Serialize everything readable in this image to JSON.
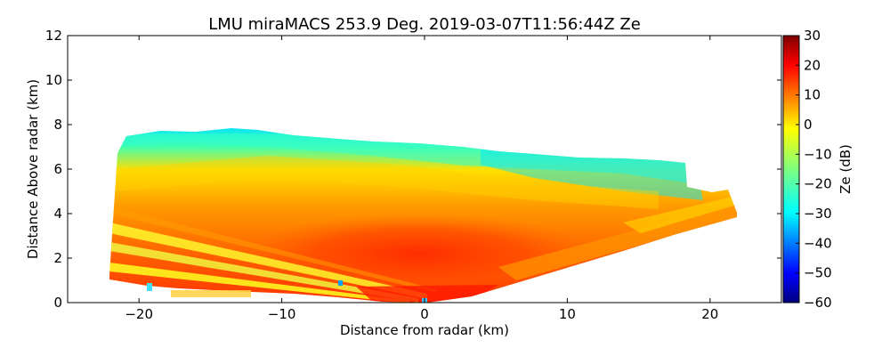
{
  "chart_data": {
    "type": "heatmap",
    "title": "LMU miraMACS 253.9 Deg. 2019-03-07T11:56:44Z  Ze",
    "xlabel": "Distance from radar (km)",
    "ylabel": "Distance Above radar  (km)",
    "xlim": [
      -25,
      25
    ],
    "ylim": [
      0,
      12
    ],
    "xticks": [
      -20,
      -10,
      0,
      10,
      20
    ],
    "xtick_labels": [
      "−20",
      "−10",
      "0",
      "10",
      "20"
    ],
    "yticks": [
      0,
      2,
      4,
      6,
      8,
      10,
      12
    ],
    "ytick_labels": [
      "0",
      "2",
      "4",
      "6",
      "8",
      "10",
      "12"
    ],
    "colorbar": {
      "label": "Ze (dB)",
      "range": [
        -60,
        30
      ],
      "colormap": "jet",
      "ticks": [
        30,
        20,
        10,
        0,
        -10,
        -20,
        -30,
        -40,
        -50,
        -60
      ],
      "tick_labels": [
        "30",
        "20",
        "10",
        "0",
        "−10",
        "−20",
        "−30",
        "−40",
        "−50",
        "−60"
      ]
    },
    "scan": {
      "description": "RHI scan, radar at origin",
      "echo_left_extent_km": -22,
      "echo_right_extent_km": 21.8,
      "echo_top_km_left": 7.5,
      "echo_top_km_max": 7.9,
      "echo_top_km_right": 5.8,
      "peak_reflectivity_dB": 25,
      "core_reflectivity_dB": 17,
      "upper_reflectivity_dB": -18
    }
  }
}
